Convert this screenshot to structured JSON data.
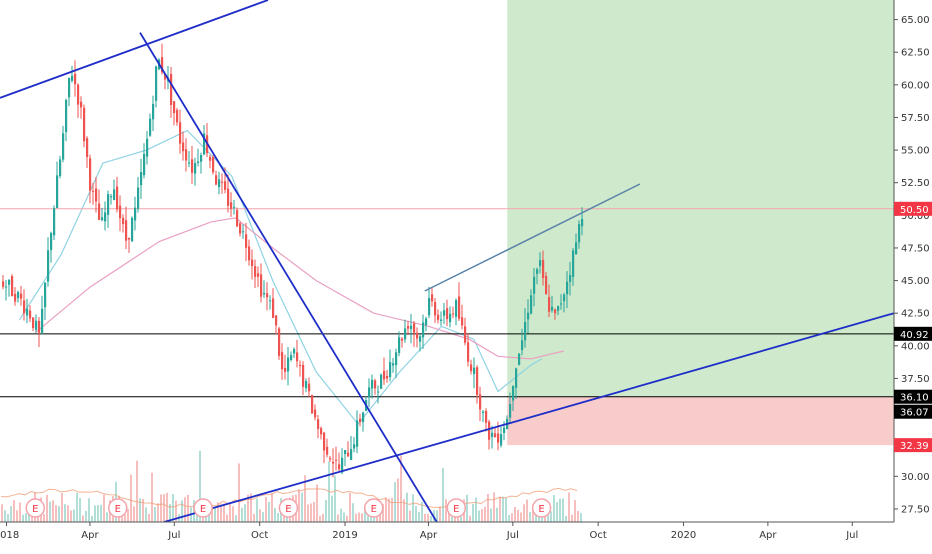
{
  "chart_data": {
    "type": "candlestick",
    "x_ticks": [
      "2018",
      "Apr",
      "Jul",
      "Oct",
      "2019",
      "Apr",
      "Jul",
      "Oct",
      "2020",
      "Apr",
      "Jul"
    ],
    "y_ticks": [
      "65.00",
      "62.50",
      "60.00",
      "57.50",
      "55.00",
      "52.50",
      "50.00",
      "47.50",
      "45.00",
      "42.50",
      "40.00",
      "37.50",
      "35.00",
      "32.50",
      "30.00",
      "27.50"
    ],
    "ylim": [
      26.5,
      66.5
    ],
    "price_badges": [
      {
        "label": "50.50",
        "value": 50.5,
        "color": "#f23645"
      },
      {
        "label": "40.92",
        "value": 40.92,
        "color": "#000000"
      },
      {
        "label": "36.10",
        "value": 36.1,
        "color": "#000000"
      },
      {
        "label": "36.07",
        "value": 36.07,
        "color": "#000000"
      },
      {
        "label": "32.39",
        "value": 32.39,
        "color": "#f23645"
      }
    ],
    "horizontal_lines": [
      40.92,
      36.1
    ],
    "earnings_marker": "E",
    "earnings_dates": [
      "2018-02-01",
      "2018-05-01",
      "2018-08-01",
      "2018-11-01",
      "2019-02-01",
      "2019-05-01",
      "2019-08-01"
    ],
    "position": {
      "entry": 36.1,
      "target": 66.5,
      "stop": 32.39,
      "start": "2019-06-25",
      "end": "2020-08-15"
    },
    "trendlines": [
      {
        "name": "upper-channel",
        "from": [
          "2017-12-25",
          59.0
        ],
        "to": [
          "2018-10-10",
          66.5
        ],
        "color": "#1f2ec8"
      },
      {
        "name": "down-trend",
        "from": [
          "2018-05-25",
          64.0
        ],
        "to": [
          "2019-04-10",
          26.5
        ],
        "color": "#1f2ec8"
      },
      {
        "name": "up-trend",
        "from": [
          "2018-06-20",
          26.5
        ],
        "to": [
          "2020-08-15",
          42.5
        ],
        "color": "#1f2ec8"
      },
      {
        "name": "resistance",
        "from": [
          "2019-03-28",
          44.2
        ],
        "to": [
          "2019-11-15",
          52.4
        ],
        "color": "#5b83a8"
      }
    ],
    "price_points": [
      [
        "2017-12-25",
        45.0
      ],
      [
        "2018-01-10",
        44.0
      ],
      [
        "2018-01-25",
        42.5
      ],
      [
        "2018-02-05",
        40.5
      ],
      [
        "2018-02-15",
        48.0
      ],
      [
        "2018-03-01",
        55.5
      ],
      [
        "2018-03-10",
        61.5
      ],
      [
        "2018-03-20",
        58.5
      ],
      [
        "2018-04-01",
        52.0
      ],
      [
        "2018-04-12",
        49.0
      ],
      [
        "2018-04-25",
        52.5
      ],
      [
        "2018-05-08",
        48.0
      ],
      [
        "2018-05-18",
        50.0
      ],
      [
        "2018-06-01",
        56.0
      ],
      [
        "2018-06-12",
        62.0
      ],
      [
        "2018-06-22",
        60.5
      ],
      [
        "2018-07-05",
        56.0
      ],
      [
        "2018-07-20",
        53.5
      ],
      [
        "2018-08-01",
        56.0
      ],
      [
        "2018-08-15",
        52.5
      ],
      [
        "2018-09-01",
        50.5
      ],
      [
        "2018-09-15",
        48.0
      ],
      [
        "2018-10-01",
        44.5
      ],
      [
        "2018-10-15",
        42.5
      ],
      [
        "2018-10-25",
        37.5
      ],
      [
        "2018-11-05",
        39.5
      ],
      [
        "2018-11-20",
        36.5
      ],
      [
        "2018-12-05",
        33.0
      ],
      [
        "2018-12-24",
        30.5
      ],
      [
        "2019-01-10",
        33.0
      ],
      [
        "2019-01-25",
        36.5
      ],
      [
        "2019-02-10",
        37.5
      ],
      [
        "2019-02-25",
        40.0
      ],
      [
        "2019-03-10",
        42.0
      ],
      [
        "2019-03-20",
        40.5
      ],
      [
        "2019-04-01",
        43.5
      ],
      [
        "2019-04-15",
        42.0
      ],
      [
        "2019-04-30",
        43.0
      ],
      [
        "2019-05-10",
        40.0
      ],
      [
        "2019-05-22",
        37.0
      ],
      [
        "2019-06-01",
        33.5
      ],
      [
        "2019-06-12",
        33.0
      ],
      [
        "2019-06-24",
        34.5
      ],
      [
        "2019-07-02",
        38.5
      ],
      [
        "2019-07-10",
        40.5
      ],
      [
        "2019-07-20",
        44.5
      ],
      [
        "2019-07-28",
        46.5
      ],
      [
        "2019-08-05",
        43.5
      ],
      [
        "2019-08-15",
        42.0
      ],
      [
        "2019-08-25",
        44.5
      ],
      [
        "2019-09-05",
        47.5
      ],
      [
        "2019-09-13",
        50.5
      ]
    ],
    "moving_averages": [
      {
        "name": "ma-fast",
        "color": "#8fd3e3",
        "points": [
          [
            "2018-01-15",
            42.0
          ],
          [
            "2018-03-01",
            47.0
          ],
          [
            "2018-04-15",
            54.0
          ],
          [
            "2018-06-01",
            55.0
          ],
          [
            "2018-07-15",
            56.5
          ],
          [
            "2018-09-01",
            53.0
          ],
          [
            "2018-10-15",
            45.0
          ],
          [
            "2018-12-01",
            38.0
          ],
          [
            "2019-01-15",
            34.0
          ],
          [
            "2019-03-01",
            38.0
          ],
          [
            "2019-04-15",
            41.5
          ],
          [
            "2019-05-20",
            40.5
          ],
          [
            "2019-06-15",
            36.5
          ],
          [
            "2019-07-20",
            38.5
          ],
          [
            "2019-08-01",
            39.0
          ]
        ]
      },
      {
        "name": "ma-slow",
        "color": "#e9a0c4",
        "points": [
          [
            "2018-02-01",
            41.0
          ],
          [
            "2018-04-01",
            44.5
          ],
          [
            "2018-06-15",
            48.0
          ],
          [
            "2018-08-10",
            49.5
          ],
          [
            "2018-09-05",
            49.8
          ],
          [
            "2018-10-15",
            47.5
          ],
          [
            "2018-12-01",
            45.0
          ],
          [
            "2019-02-01",
            42.5
          ],
          [
            "2019-04-01",
            41.5
          ],
          [
            "2019-05-15",
            40.5
          ],
          [
            "2019-06-15",
            39.2
          ],
          [
            "2019-07-20",
            39.0
          ],
          [
            "2019-08-25",
            39.6
          ]
        ]
      }
    ],
    "colors": {
      "up": "#26a69a",
      "down": "#ef5350",
      "target_zone": "#cfe9cc",
      "stop_zone": "#f9cccc"
    }
  }
}
